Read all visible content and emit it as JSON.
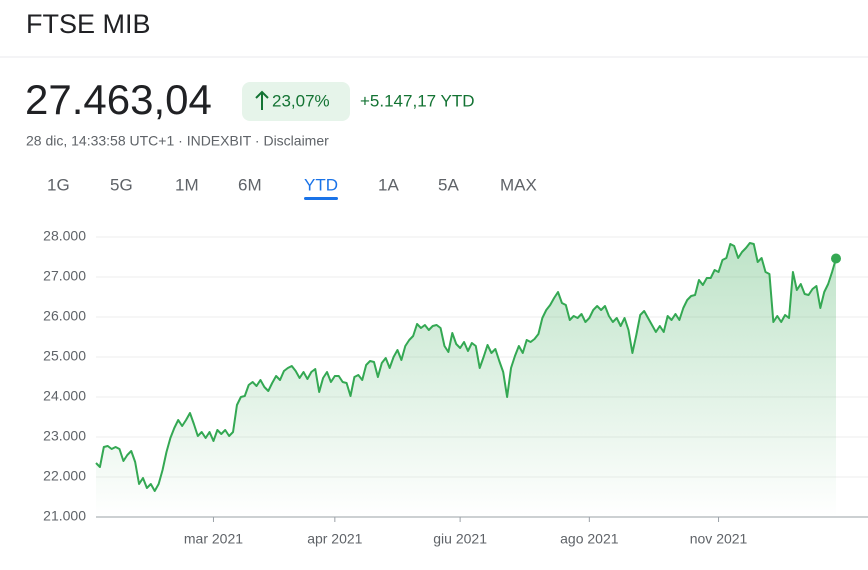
{
  "header": {
    "title": "FTSE MIB"
  },
  "quote": {
    "price": "27.463,04",
    "change_pct": "23,07%",
    "change_abs": "+5.147,17 YTD",
    "meta": "28 dic, 14:33:58 UTC+1 · INDEXBIT · Disclaimer"
  },
  "range_tabs": [
    "1G",
    "5G",
    "1M",
    "6M",
    "YTD",
    "1A",
    "5A",
    "MAX"
  ],
  "selected_tab": "YTD",
  "chart_data": {
    "type": "line",
    "color": "#34a853",
    "grid": true,
    "categories": [
      null,
      null,
      null,
      null,
      null,
      null,
      null,
      null,
      null,
      null,
      null,
      null,
      null,
      null,
      null,
      null,
      null,
      null,
      null,
      null,
      null,
      null,
      null,
      null,
      null,
      null,
      null,
      null,
      null,
      null,
      "mar 2021",
      null,
      null,
      null,
      null,
      null,
      null,
      null,
      null,
      null,
      null,
      null,
      null,
      null,
      null,
      null,
      null,
      null,
      null,
      null,
      null,
      null,
      null,
      null,
      null,
      null,
      null,
      null,
      null,
      null,
      null,
      "apr 2021",
      null,
      null,
      null,
      null,
      null,
      null,
      null,
      null,
      null,
      null,
      null,
      null,
      null,
      null,
      null,
      null,
      null,
      null,
      null,
      null,
      null,
      null,
      null,
      null,
      null,
      null,
      null,
      null,
      null,
      null,
      null,
      "giu 2021",
      null,
      null,
      null,
      null,
      null,
      null,
      null,
      null,
      null,
      null,
      null,
      null,
      null,
      null,
      null,
      null,
      null,
      null,
      null,
      null,
      null,
      null,
      null,
      null,
      null,
      null,
      null,
      null,
      null,
      null,
      null,
      null,
      "ago 2021",
      null,
      null,
      null,
      null,
      null,
      null,
      null,
      null,
      null,
      null,
      null,
      null,
      null,
      null,
      null,
      null,
      null,
      null,
      null,
      null,
      null,
      null,
      null,
      null,
      null,
      null,
      null,
      null,
      null,
      null,
      null,
      null,
      "nov 2021",
      null,
      null,
      null,
      null,
      null,
      null,
      null,
      null,
      null,
      null,
      null,
      null,
      null,
      null,
      null,
      null,
      null,
      null,
      null,
      null,
      null,
      null,
      null,
      null,
      null,
      null,
      null,
      null,
      null,
      null
    ],
    "values": [
      22350,
      22250,
      22750,
      22775,
      22700,
      22750,
      22700,
      22400,
      22550,
      22650,
      22375,
      21825,
      21975,
      21725,
      21825,
      21650,
      21825,
      22175,
      22625,
      22975,
      23225,
      23425,
      23275,
      23425,
      23600,
      23325,
      23025,
      23125,
      22975,
      23125,
      22900,
      23175,
      23075,
      23175,
      23025,
      23125,
      23800,
      24000,
      24025,
      24300,
      24375,
      24275,
      24425,
      24250,
      24150,
      24350,
      24525,
      24425,
      24650,
      24725,
      24775,
      24650,
      24475,
      24625,
      24450,
      24625,
      24700,
      24125,
      24475,
      24625,
      24375,
      24525,
      24525,
      24375,
      24350,
      24025,
      24500,
      24550,
      24425,
      24800,
      24900,
      24875,
      24500,
      24850,
      24975,
      24725,
      25000,
      25175,
      24925,
      25275,
      25425,
      25525,
      25825,
      25725,
      25800,
      25675,
      25775,
      25800,
      25725,
      25275,
      25125,
      25600,
      25325,
      25225,
      25375,
      25150,
      25350,
      25275,
      24725,
      25000,
      25300,
      25100,
      25200,
      24900,
      24625,
      24000,
      24725,
      25025,
      25275,
      25100,
      25425,
      25375,
      25450,
      25575,
      25975,
      26175,
      26300,
      26475,
      26625,
      26350,
      26300,
      25925,
      26025,
      25975,
      26075,
      25875,
      25975,
      26175,
      26275,
      26175,
      26275,
      26025,
      25875,
      25975,
      25775,
      25975,
      25675,
      25100,
      25550,
      26050,
      26150,
      25975,
      25800,
      25625,
      25775,
      25625,
      26025,
      25925,
      26075,
      25925,
      26225,
      26425,
      26525,
      26550,
      26925,
      26800,
      26975,
      26975,
      27175,
      27125,
      27425,
      27475,
      27825,
      27775,
      27475,
      27625,
      27725,
      27850,
      27825,
      27375,
      27475,
      27125,
      27075,
      25875,
      26025,
      25875,
      26050,
      25975,
      27125,
      26675,
      26825,
      26575,
      26550,
      26700,
      26775,
      26225,
      26625,
      26825,
      27125,
      27463.04
    ],
    "ylim": [
      21000,
      28000
    ],
    "yticks": [
      {
        "value": 21000,
        "label": "21.000"
      },
      {
        "value": 22000,
        "label": "22.000"
      },
      {
        "value": 23000,
        "label": "23.000"
      },
      {
        "value": 24000,
        "label": "24.000"
      },
      {
        "value": 25000,
        "label": "25.000"
      },
      {
        "value": 26000,
        "label": "26.000"
      },
      {
        "value": 27000,
        "label": "27.000"
      },
      {
        "value": 28000,
        "label": "28.000"
      }
    ]
  }
}
